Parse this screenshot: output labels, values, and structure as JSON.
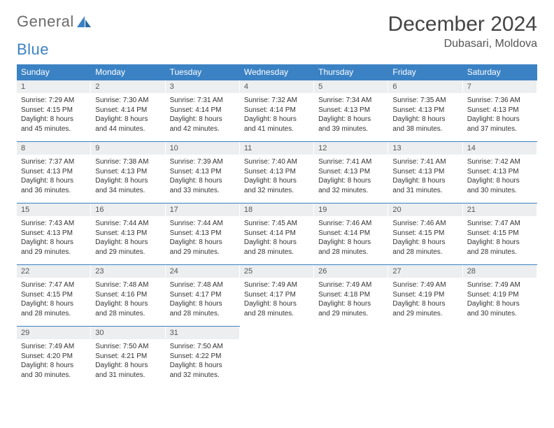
{
  "logo": {
    "word1": "General",
    "word2": "Blue"
  },
  "title": "December 2024",
  "location": "Dubasari, Moldova",
  "colors": {
    "header_bg": "#3b82c4",
    "header_text": "#ffffff",
    "daynum_bg": "#eceeef",
    "row_divider": "#3b82c4",
    "text": "#333333",
    "title_text": "#444444"
  },
  "weekdays": [
    "Sunday",
    "Monday",
    "Tuesday",
    "Wednesday",
    "Thursday",
    "Friday",
    "Saturday"
  ],
  "grid": [
    [
      {
        "n": "1",
        "sr": "Sunrise: 7:29 AM",
        "ss": "Sunset: 4:15 PM",
        "d1": "Daylight: 8 hours",
        "d2": "and 45 minutes."
      },
      {
        "n": "2",
        "sr": "Sunrise: 7:30 AM",
        "ss": "Sunset: 4:14 PM",
        "d1": "Daylight: 8 hours",
        "d2": "and 44 minutes."
      },
      {
        "n": "3",
        "sr": "Sunrise: 7:31 AM",
        "ss": "Sunset: 4:14 PM",
        "d1": "Daylight: 8 hours",
        "d2": "and 42 minutes."
      },
      {
        "n": "4",
        "sr": "Sunrise: 7:32 AM",
        "ss": "Sunset: 4:14 PM",
        "d1": "Daylight: 8 hours",
        "d2": "and 41 minutes."
      },
      {
        "n": "5",
        "sr": "Sunrise: 7:34 AM",
        "ss": "Sunset: 4:13 PM",
        "d1": "Daylight: 8 hours",
        "d2": "and 39 minutes."
      },
      {
        "n": "6",
        "sr": "Sunrise: 7:35 AM",
        "ss": "Sunset: 4:13 PM",
        "d1": "Daylight: 8 hours",
        "d2": "and 38 minutes."
      },
      {
        "n": "7",
        "sr": "Sunrise: 7:36 AM",
        "ss": "Sunset: 4:13 PM",
        "d1": "Daylight: 8 hours",
        "d2": "and 37 minutes."
      }
    ],
    [
      {
        "n": "8",
        "sr": "Sunrise: 7:37 AM",
        "ss": "Sunset: 4:13 PM",
        "d1": "Daylight: 8 hours",
        "d2": "and 36 minutes."
      },
      {
        "n": "9",
        "sr": "Sunrise: 7:38 AM",
        "ss": "Sunset: 4:13 PM",
        "d1": "Daylight: 8 hours",
        "d2": "and 34 minutes."
      },
      {
        "n": "10",
        "sr": "Sunrise: 7:39 AM",
        "ss": "Sunset: 4:13 PM",
        "d1": "Daylight: 8 hours",
        "d2": "and 33 minutes."
      },
      {
        "n": "11",
        "sr": "Sunrise: 7:40 AM",
        "ss": "Sunset: 4:13 PM",
        "d1": "Daylight: 8 hours",
        "d2": "and 32 minutes."
      },
      {
        "n": "12",
        "sr": "Sunrise: 7:41 AM",
        "ss": "Sunset: 4:13 PM",
        "d1": "Daylight: 8 hours",
        "d2": "and 32 minutes."
      },
      {
        "n": "13",
        "sr": "Sunrise: 7:41 AM",
        "ss": "Sunset: 4:13 PM",
        "d1": "Daylight: 8 hours",
        "d2": "and 31 minutes."
      },
      {
        "n": "14",
        "sr": "Sunrise: 7:42 AM",
        "ss": "Sunset: 4:13 PM",
        "d1": "Daylight: 8 hours",
        "d2": "and 30 minutes."
      }
    ],
    [
      {
        "n": "15",
        "sr": "Sunrise: 7:43 AM",
        "ss": "Sunset: 4:13 PM",
        "d1": "Daylight: 8 hours",
        "d2": "and 29 minutes."
      },
      {
        "n": "16",
        "sr": "Sunrise: 7:44 AM",
        "ss": "Sunset: 4:13 PM",
        "d1": "Daylight: 8 hours",
        "d2": "and 29 minutes."
      },
      {
        "n": "17",
        "sr": "Sunrise: 7:44 AM",
        "ss": "Sunset: 4:13 PM",
        "d1": "Daylight: 8 hours",
        "d2": "and 29 minutes."
      },
      {
        "n": "18",
        "sr": "Sunrise: 7:45 AM",
        "ss": "Sunset: 4:14 PM",
        "d1": "Daylight: 8 hours",
        "d2": "and 28 minutes."
      },
      {
        "n": "19",
        "sr": "Sunrise: 7:46 AM",
        "ss": "Sunset: 4:14 PM",
        "d1": "Daylight: 8 hours",
        "d2": "and 28 minutes."
      },
      {
        "n": "20",
        "sr": "Sunrise: 7:46 AM",
        "ss": "Sunset: 4:15 PM",
        "d1": "Daylight: 8 hours",
        "d2": "and 28 minutes."
      },
      {
        "n": "21",
        "sr": "Sunrise: 7:47 AM",
        "ss": "Sunset: 4:15 PM",
        "d1": "Daylight: 8 hours",
        "d2": "and 28 minutes."
      }
    ],
    [
      {
        "n": "22",
        "sr": "Sunrise: 7:47 AM",
        "ss": "Sunset: 4:15 PM",
        "d1": "Daylight: 8 hours",
        "d2": "and 28 minutes."
      },
      {
        "n": "23",
        "sr": "Sunrise: 7:48 AM",
        "ss": "Sunset: 4:16 PM",
        "d1": "Daylight: 8 hours",
        "d2": "and 28 minutes."
      },
      {
        "n": "24",
        "sr": "Sunrise: 7:48 AM",
        "ss": "Sunset: 4:17 PM",
        "d1": "Daylight: 8 hours",
        "d2": "and 28 minutes."
      },
      {
        "n": "25",
        "sr": "Sunrise: 7:49 AM",
        "ss": "Sunset: 4:17 PM",
        "d1": "Daylight: 8 hours",
        "d2": "and 28 minutes."
      },
      {
        "n": "26",
        "sr": "Sunrise: 7:49 AM",
        "ss": "Sunset: 4:18 PM",
        "d1": "Daylight: 8 hours",
        "d2": "and 29 minutes."
      },
      {
        "n": "27",
        "sr": "Sunrise: 7:49 AM",
        "ss": "Sunset: 4:19 PM",
        "d1": "Daylight: 8 hours",
        "d2": "and 29 minutes."
      },
      {
        "n": "28",
        "sr": "Sunrise: 7:49 AM",
        "ss": "Sunset: 4:19 PM",
        "d1": "Daylight: 8 hours",
        "d2": "and 30 minutes."
      }
    ],
    [
      {
        "n": "29",
        "sr": "Sunrise: 7:49 AM",
        "ss": "Sunset: 4:20 PM",
        "d1": "Daylight: 8 hours",
        "d2": "and 30 minutes."
      },
      {
        "n": "30",
        "sr": "Sunrise: 7:50 AM",
        "ss": "Sunset: 4:21 PM",
        "d1": "Daylight: 8 hours",
        "d2": "and 31 minutes."
      },
      {
        "n": "31",
        "sr": "Sunrise: 7:50 AM",
        "ss": "Sunset: 4:22 PM",
        "d1": "Daylight: 8 hours",
        "d2": "and 32 minutes."
      },
      null,
      null,
      null,
      null
    ]
  ]
}
